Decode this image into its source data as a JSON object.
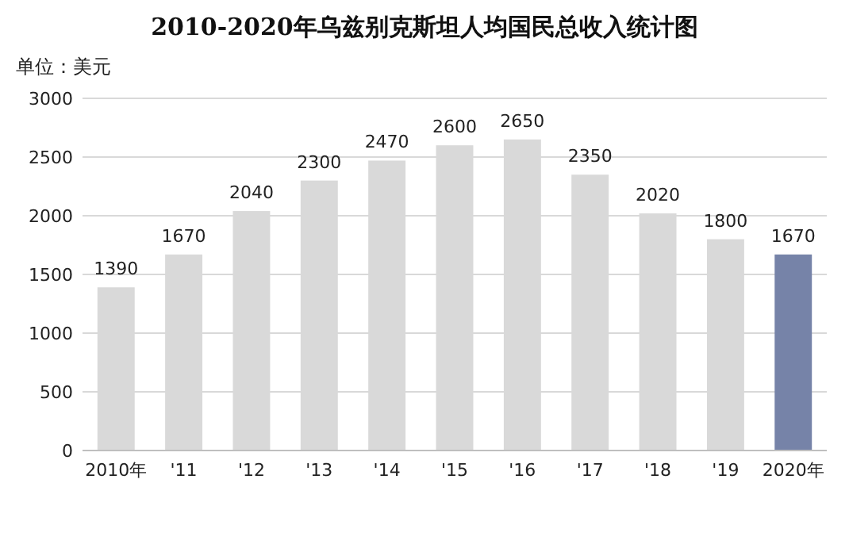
{
  "chart_data": {
    "type": "bar",
    "title": "2010-2020年乌兹别克斯坦人均国民总收入统计图",
    "ylabel": "单位：美元",
    "categories": [
      "2010年",
      "'11",
      "'12",
      "'13",
      "'14",
      "'15",
      "'16",
      "'17",
      "'18",
      "'19",
      "2020年"
    ],
    "values": [
      1390,
      1670,
      2040,
      2300,
      2470,
      2600,
      2650,
      2350,
      2020,
      1800,
      1670
    ],
    "colors": [
      "#d9d9d9",
      "#d9d9d9",
      "#d9d9d9",
      "#d9d9d9",
      "#d9d9d9",
      "#d9d9d9",
      "#d9d9d9",
      "#d9d9d9",
      "#d9d9d9",
      "#d9d9d9",
      "#7683a8"
    ],
    "ylim": [
      0,
      3000
    ],
    "yticks": [
      0,
      500,
      1000,
      1500,
      2000,
      2500,
      3000
    ],
    "grid": "y",
    "data_labels": true
  }
}
